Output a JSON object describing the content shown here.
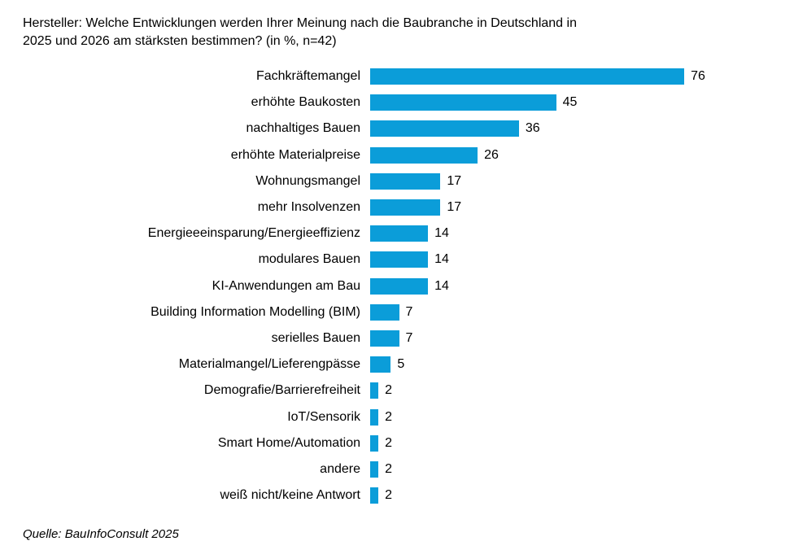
{
  "title": "Hersteller: Welche Entwicklungen werden Ihrer Meinung nach die Baubranche in Deutschland in\n2025 und 2026 am stärksten bestimmen? (in %, n=42)",
  "source": "Quelle: BauInfoConsult 2025",
  "chart_data": {
    "type": "bar",
    "orientation": "horizontal",
    "title": "Hersteller: Welche Entwicklungen werden Ihrer Meinung nach die Baubranche in Deutschland in 2025 und 2026 am stärksten bestimmen? (in %, n=42)",
    "unit": "%",
    "n": 42,
    "bar_color": "#0B9DD9",
    "xlim": [
      0,
      80
    ],
    "grid": false,
    "legend": "none",
    "categories": [
      "Fachkräftemangel",
      "erhöhte Baukosten",
      "nachhaltiges Bauen",
      "erhöhte Materialpreise",
      "Wohnungsmangel",
      "mehr Insolvenzen",
      "Energieeeinsparung/Energieeffizienz",
      "modulares Bauen",
      "KI-Anwendungen am Bau",
      "Building Information Modelling (BIM)",
      "serielles Bauen",
      "Materialmangel/Lieferengpässe",
      "Demografie/Barrierefreiheit",
      "IoT/Sensorik",
      "Smart Home/Automation",
      "andere",
      "weiß nicht/keine Antwort"
    ],
    "values": [
      76,
      45,
      36,
      26,
      17,
      17,
      14,
      14,
      14,
      7,
      7,
      5,
      2,
      2,
      2,
      2,
      2
    ]
  }
}
